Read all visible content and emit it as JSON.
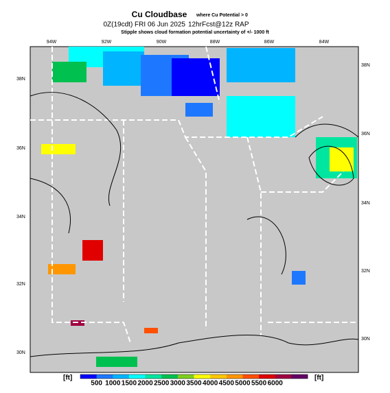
{
  "header": {
    "title": "Cu Cloudbase",
    "title_note": "where Cu Potential > 0",
    "valid_time": "0Z(19cdt) FRI 06 Jun 2025",
    "forecast": "12hrFcst@12z RAP",
    "subtitle": "Stipple shows cloud formation potential uncertainty of +/- 1000 ft"
  },
  "map": {
    "lon_labels": [
      "94W",
      "92W",
      "90W",
      "88W",
      "86W",
      "84W"
    ],
    "lat_labels_left": [
      "38N",
      "36N",
      "34N",
      "32N",
      "30N"
    ],
    "lat_labels_right": [
      "38N",
      "36N",
      "34N",
      "32N",
      "30N"
    ]
  },
  "colorbar": {
    "unit_left": "[ft]",
    "unit_right": "[ft]",
    "ticks": [
      500,
      1000,
      1500,
      2000,
      2500,
      3000,
      3500,
      4000,
      4500,
      5000,
      5500,
      6000
    ],
    "colors": [
      "#0000ff",
      "#1e78ff",
      "#00b4ff",
      "#00ffff",
      "#00e6a0",
      "#00c050",
      "#80d020",
      "#ffff00",
      "#ffc800",
      "#ff9600",
      "#ff5000",
      "#e00000",
      "#a00040",
      "#640064"
    ]
  }
}
